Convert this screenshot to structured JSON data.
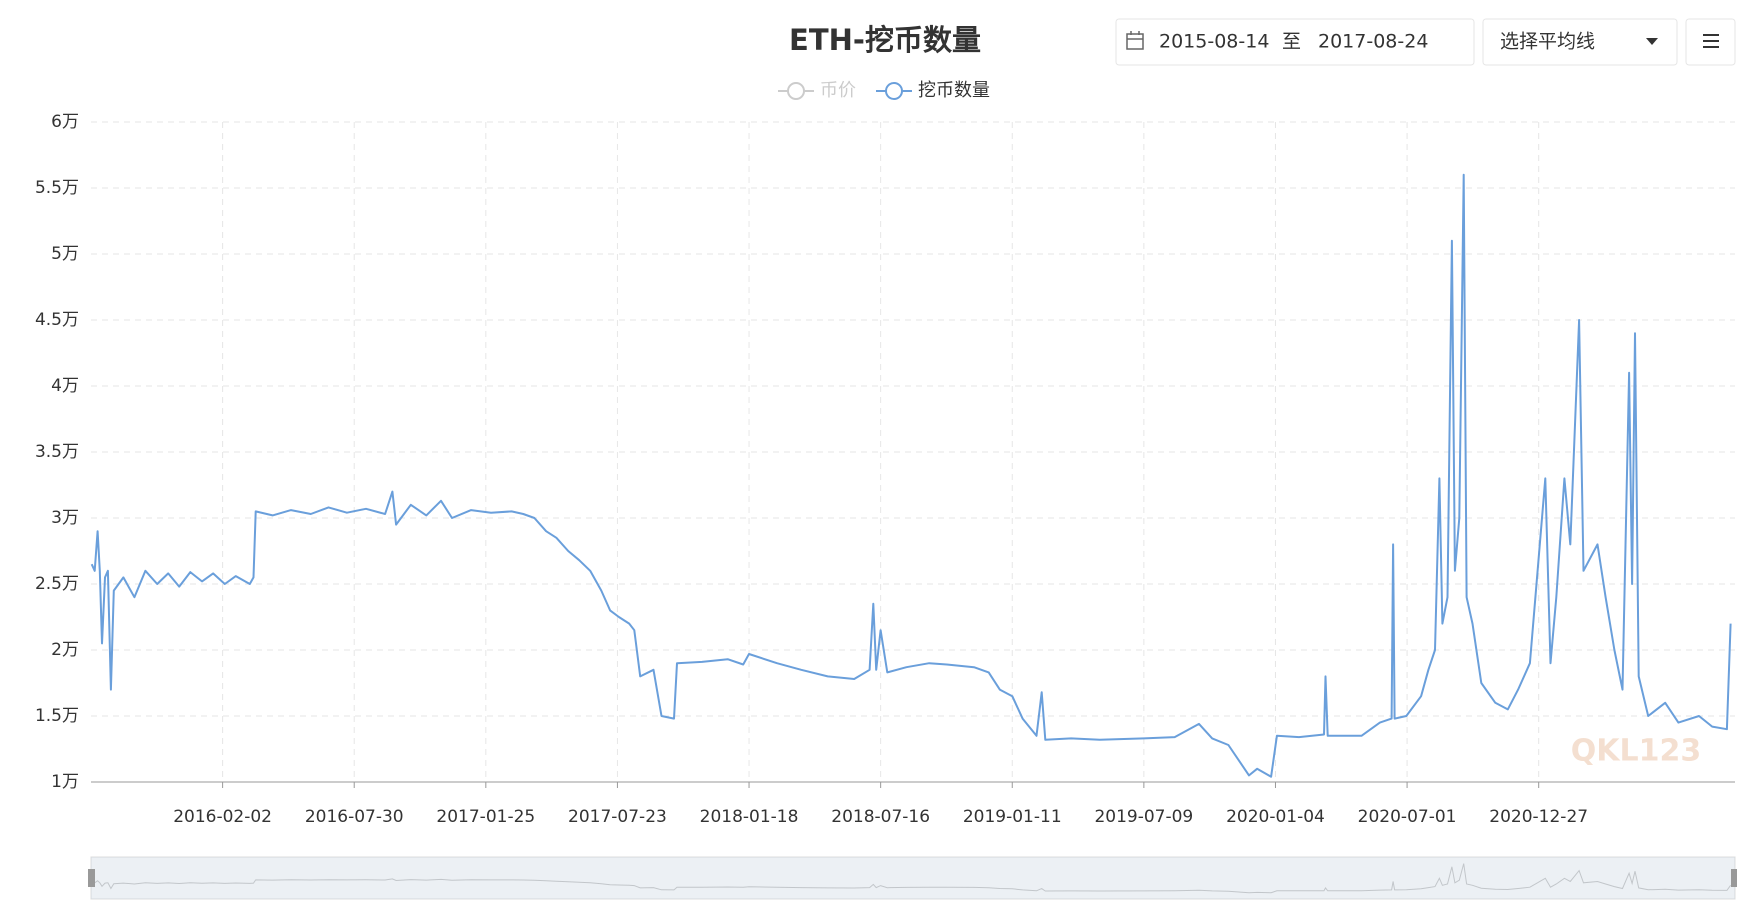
{
  "chart_data": {
    "type": "line",
    "title": "ETH-挖币数量",
    "controls": {
      "date_from": "2015-08-14",
      "date_sep": "至",
      "date_to": "2017-08-24",
      "average_select": "选择平均线"
    },
    "watermark": "QKL123",
    "grid": true,
    "xlim": [
      "2015-08-07",
      "2021-09-20"
    ],
    "xticks": [
      "2016-02-02",
      "2016-07-30",
      "2017-01-25",
      "2017-07-23",
      "2018-01-18",
      "2018-07-16",
      "2019-01-11",
      "2019-07-09",
      "2020-01-04",
      "2020-07-01",
      "2020-12-27"
    ],
    "ylim": [
      10000,
      60000
    ],
    "yticks": [
      {
        "value": 10000,
        "label": "1万"
      },
      {
        "value": 15000,
        "label": "1.5万"
      },
      {
        "value": 20000,
        "label": "2万"
      },
      {
        "value": 25000,
        "label": "2.5万"
      },
      {
        "value": 30000,
        "label": "3万"
      },
      {
        "value": 35000,
        "label": "3.5万"
      },
      {
        "value": 40000,
        "label": "4万"
      },
      {
        "value": 45000,
        "label": "4.5万"
      },
      {
        "value": 50000,
        "label": "5万"
      },
      {
        "value": 55000,
        "label": "5.5万"
      },
      {
        "value": 60000,
        "label": "6万"
      }
    ],
    "x": [
      "2015-08-08",
      "2015-08-12",
      "2015-08-16",
      "2015-08-19",
      "2015-08-22",
      "2015-08-26",
      "2015-08-30",
      "2015-09-03",
      "2015-09-07",
      "2015-09-20",
      "2015-10-05",
      "2015-10-20",
      "2015-11-05",
      "2015-11-20",
      "2015-12-05",
      "2015-12-20",
      "2016-01-05",
      "2016-01-20",
      "2016-02-05",
      "2016-02-20",
      "2016-03-10",
      "2016-03-15",
      "2016-03-18",
      "2016-04-10",
      "2016-05-05",
      "2016-06-01",
      "2016-06-25",
      "2016-07-20",
      "2016-08-15",
      "2016-09-10",
      "2016-09-20",
      "2016-09-25",
      "2016-10-15",
      "2016-11-05",
      "2016-11-25",
      "2016-12-10",
      "2017-01-05",
      "2017-02-01",
      "2017-03-01",
      "2017-03-17",
      "2017-04-01",
      "2017-04-17",
      "2017-05-01",
      "2017-05-17",
      "2017-06-01",
      "2017-06-16",
      "2017-07-01",
      "2017-07-13",
      "2017-07-25",
      "2017-08-08",
      "2017-08-15",
      "2017-08-23",
      "2017-09-10",
      "2017-09-21",
      "2017-10-08",
      "2017-10-12",
      "2017-11-15",
      "2017-12-20",
      "2018-01-10",
      "2018-01-18",
      "2018-02-25",
      "2018-03-30",
      "2018-05-05",
      "2018-06-10",
      "2018-07-01",
      "2018-07-06",
      "2018-07-10",
      "2018-07-16",
      "2018-07-25",
      "2018-08-20",
      "2018-09-20",
      "2018-10-14",
      "2018-11-20",
      "2018-12-10",
      "2018-12-25",
      "2019-01-11",
      "2019-01-25",
      "2019-02-13",
      "2019-02-20",
      "2019-02-25",
      "2019-04-01",
      "2019-05-10",
      "2019-07-09",
      "2019-08-20",
      "2019-09-22",
      "2019-10-10",
      "2019-11-01",
      "2019-11-29",
      "2019-12-10",
      "2019-12-29",
      "2020-01-06",
      "2020-02-05",
      "2020-03-10",
      "2020-03-12",
      "2020-03-15",
      "2020-04-30",
      "2020-05-25",
      "2020-06-10",
      "2020-06-12",
      "2020-06-14",
      "2020-06-30",
      "2020-07-20",
      "2020-07-30",
      "2020-08-08",
      "2020-08-14",
      "2020-08-18",
      "2020-08-25",
      "2020-08-31",
      "2020-09-04",
      "2020-09-10",
      "2020-09-16",
      "2020-09-20",
      "2020-09-28",
      "2020-10-10",
      "2020-10-29",
      "2020-11-15",
      "2020-11-29",
      "2020-12-15",
      "2021-01-05",
      "2021-01-12",
      "2021-01-20",
      "2021-01-31",
      "2021-02-08",
      "2021-02-20",
      "2021-02-26",
      "2021-03-17",
      "2021-03-28",
      "2021-04-09",
      "2021-04-20",
      "2021-04-29",
      "2021-05-03",
      "2021-05-07",
      "2021-05-12",
      "2021-05-25",
      "2021-06-17",
      "2021-07-05",
      "2021-08-02",
      "2021-08-20",
      "2021-09-09",
      "2021-09-14"
    ],
    "series": [
      {
        "name": "币价",
        "color": "#cccccc",
        "visible": false
      },
      {
        "name": "挖币数量",
        "color": "#6a9fdb",
        "visible": true,
        "values": [
          26500,
          26000,
          29000,
          26000,
          20500,
          25500,
          26000,
          17000,
          24500,
          25500,
          24000,
          26000,
          25000,
          25800,
          24800,
          25900,
          25200,
          25800,
          25000,
          25600,
          25000,
          25500,
          30500,
          30200,
          30600,
          30300,
          30800,
          30400,
          30700,
          30300,
          32000,
          29500,
          31000,
          30200,
          31300,
          30000,
          30600,
          30400,
          30500,
          30300,
          30000,
          29000,
          28500,
          27500,
          26800,
          26000,
          24500,
          23000,
          22500,
          22000,
          21500,
          18000,
          18500,
          15000,
          14800,
          19000,
          19100,
          19300,
          18900,
          19700,
          19000,
          18500,
          18000,
          17800,
          18500,
          23500,
          18500,
          21500,
          18300,
          18700,
          19000,
          18900,
          18700,
          18300,
          17000,
          16500,
          14800,
          13500,
          16800,
          13200,
          13300,
          13200,
          13300,
          13400,
          14400,
          13300,
          12800,
          10500,
          11000,
          10400,
          13500,
          13400,
          13600,
          18000,
          13500,
          13500,
          14500,
          14800,
          28000,
          14800,
          15000,
          16500,
          18500,
          20000,
          33000,
          22000,
          24000,
          51000,
          26000,
          30000,
          56000,
          24000,
          22000,
          17500,
          16000,
          15500,
          17000,
          19000,
          33000,
          19000,
          24000,
          33000,
          28000,
          45000,
          26000,
          28000,
          24000,
          20000,
          17000,
          41000,
          25000,
          44000,
          18000,
          15000,
          16000,
          14500,
          15000,
          14200,
          14000,
          22000
        ]
      }
    ]
  }
}
